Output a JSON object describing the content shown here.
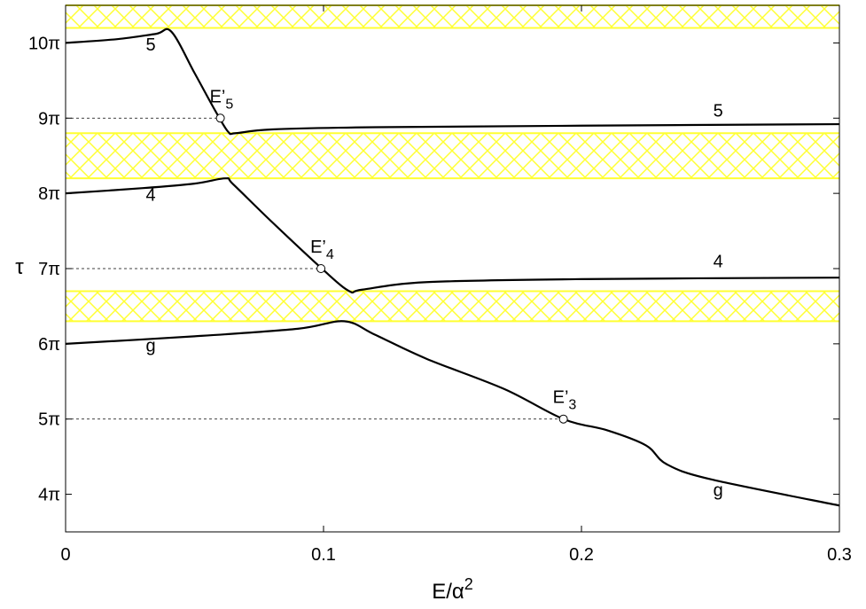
{
  "chart_data": {
    "type": "line",
    "title": "",
    "xlabel": "E/α",
    "xlabel_superscript": "2",
    "ylabel": "τ",
    "xlim": [
      0,
      0.3
    ],
    "ylim_in_pi": [
      3.5,
      10.5
    ],
    "x_ticks": [
      {
        "value": 0,
        "label": "0"
      },
      {
        "value": 0.1,
        "label": "0.1"
      },
      {
        "value": 0.2,
        "label": "0.2"
      },
      {
        "value": 0.3,
        "label": "0.3"
      }
    ],
    "y_ticks": [
      {
        "value_in_pi": 4,
        "label": "4π"
      },
      {
        "value_in_pi": 5,
        "label": "5π"
      },
      {
        "value_in_pi": 6,
        "label": "6π"
      },
      {
        "value_in_pi": 7,
        "label": "7π"
      },
      {
        "value_in_pi": 8,
        "label": "8π"
      },
      {
        "value_in_pi": 9,
        "label": "9π"
      },
      {
        "value_in_pi": 10,
        "label": "10π"
      }
    ],
    "bands": [
      {
        "y_from_in_pi": 6.3,
        "y_to_in_pi": 6.7,
        "color": "#ffff33"
      },
      {
        "y_from_in_pi": 8.2,
        "y_to_in_pi": 8.8,
        "color": "#ffff33"
      },
      {
        "y_from_in_pi": 10.2,
        "y_to_in_pi": 10.55,
        "color": "#ffff33"
      }
    ],
    "series": [
      {
        "id": "curve-5-lower",
        "points": [
          [
            0,
            10.0
          ],
          [
            0.02,
            10.05
          ],
          [
            0.035,
            10.12
          ],
          [
            0.041,
            10.15
          ],
          [
            0.05,
            9.6
          ],
          [
            0.058,
            9.1
          ],
          [
            0.063,
            8.82
          ],
          [
            0.066,
            8.8
          ],
          [
            0.08,
            8.85
          ],
          [
            0.12,
            8.88
          ],
          [
            0.2,
            8.9
          ],
          [
            0.3,
            8.92
          ]
        ]
      },
      {
        "id": "curve-4",
        "points": [
          [
            0,
            8.0
          ],
          [
            0.03,
            8.07
          ],
          [
            0.05,
            8.13
          ],
          [
            0.062,
            8.2
          ],
          [
            0.065,
            8.12
          ],
          [
            0.08,
            7.62
          ],
          [
            0.1,
            6.98
          ],
          [
            0.11,
            6.7
          ],
          [
            0.115,
            6.72
          ],
          [
            0.14,
            6.82
          ],
          [
            0.2,
            6.86
          ],
          [
            0.3,
            6.88
          ]
        ]
      },
      {
        "id": "curve-g",
        "points": [
          [
            0,
            6.0
          ],
          [
            0.05,
            6.1
          ],
          [
            0.09,
            6.2
          ],
          [
            0.108,
            6.3
          ],
          [
            0.12,
            6.12
          ],
          [
            0.14,
            5.8
          ],
          [
            0.17,
            5.4
          ],
          [
            0.193,
            5.0
          ],
          [
            0.21,
            4.85
          ],
          [
            0.225,
            4.65
          ],
          [
            0.233,
            4.4
          ],
          [
            0.25,
            4.2
          ],
          [
            0.3,
            3.85
          ]
        ]
      }
    ],
    "reference_lines": [
      {
        "y_in_pi": 9,
        "x_end": 0.06,
        "style": "dashed"
      },
      {
        "y_in_pi": 7,
        "x_end": 0.099,
        "style": "dashed"
      },
      {
        "y_in_pi": 5,
        "x_end": 0.193,
        "style": "dashed"
      }
    ],
    "points": [
      {
        "x": 0.06,
        "y_in_pi": 9,
        "label": "E’",
        "subscript": "5"
      },
      {
        "x": 0.099,
        "y_in_pi": 7,
        "label": "E’",
        "subscript": "4"
      },
      {
        "x": 0.193,
        "y_in_pi": 5,
        "label": "E’",
        "subscript": "3"
      }
    ],
    "curve_labels": [
      {
        "text": "5",
        "x": 0.033,
        "y_in_pi": 9.9
      },
      {
        "text": "5",
        "x": 0.253,
        "y_in_pi": 9.02
      },
      {
        "text": "4",
        "x": 0.033,
        "y_in_pi": 7.9
      },
      {
        "text": "4",
        "x": 0.253,
        "y_in_pi": 7.02
      },
      {
        "text": "g",
        "x": 0.033,
        "y_in_pi": 5.9
      },
      {
        "text": "g",
        "x": 0.253,
        "y_in_pi": 3.98
      }
    ]
  }
}
